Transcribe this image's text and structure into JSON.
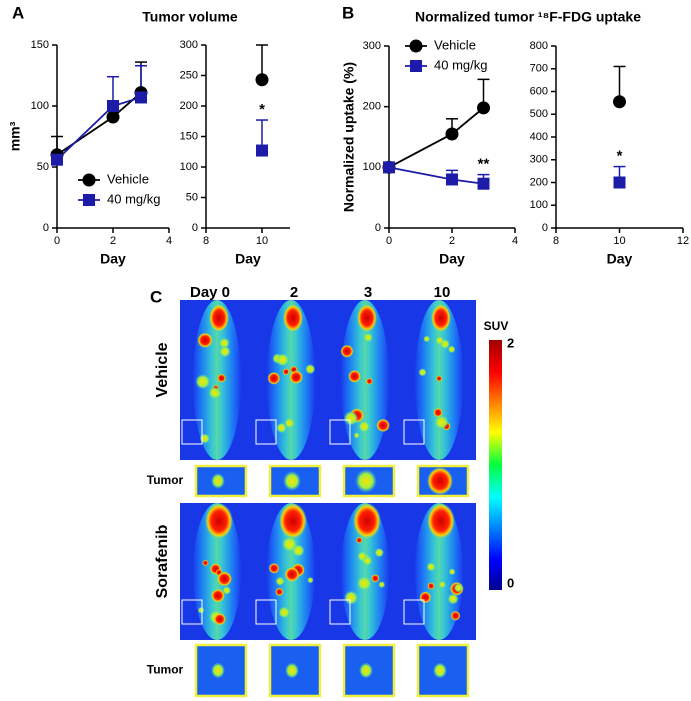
{
  "panels": [
    "A",
    "B"
  ],
  "chart_data": [
    {
      "type": "line",
      "title": "Tumor volume",
      "ylabel": "mm³",
      "xlabel": "Day",
      "xlim": [
        0,
        4
      ],
      "xticks": [
        0,
        2,
        4
      ],
      "ylim": [
        0,
        150
      ],
      "yticks": [
        0,
        50,
        100,
        150
      ],
      "x": [
        0,
        2,
        3
      ],
      "legend": "lower right",
      "series": [
        {
          "name": "Vehicle",
          "color": "#000000",
          "marker": "circle",
          "values": [
            60,
            91,
            111
          ],
          "errors": [
            15,
            10,
            25
          ]
        },
        {
          "name": "40 mg/kg",
          "color": "#1c1ca8",
          "marker": "square",
          "values": [
            56,
            100,
            107
          ],
          "errors": [
            5,
            24,
            26
          ]
        }
      ]
    },
    {
      "type": "line",
      "xlabel": "Day",
      "xlim": [
        8,
        11
      ],
      "xticks": [
        8,
        10
      ],
      "ylim": [
        0,
        300
      ],
      "yticks": [
        0,
        50,
        100,
        150,
        200,
        250,
        300
      ],
      "x": [
        10
      ],
      "annotations": [
        "*"
      ],
      "series": [
        {
          "color": "#000000",
          "marker": "circle",
          "values": [
            243
          ],
          "errors": [
            57
          ]
        },
        {
          "color": "#1c1ca8",
          "marker": "square",
          "values": [
            127
          ],
          "errors": [
            50
          ]
        }
      ]
    },
    {
      "type": "line",
      "title": "Normalized tumor ¹⁸F-FDG uptake",
      "ylabel": "Normalized uptake (%)",
      "xlabel": "Day",
      "xlim": [
        0,
        4
      ],
      "xticks": [
        0,
        2,
        4
      ],
      "ylim": [
        0,
        300
      ],
      "yticks": [
        0,
        100,
        200,
        300
      ],
      "x": [
        0,
        2,
        3
      ],
      "legend": "upper left",
      "annotations": [
        "**"
      ],
      "series": [
        {
          "name": "Vehicle",
          "color": "#000000",
          "marker": "circle",
          "values": [
            100,
            155,
            198
          ],
          "errors": [
            0,
            25,
            47
          ]
        },
        {
          "name": "40 mg/kg",
          "color": "#1c1ca8",
          "marker": "square",
          "values": [
            100,
            80,
            73
          ],
          "errors": [
            0,
            15,
            15
          ]
        }
      ]
    },
    {
      "type": "line",
      "xlabel": "Day",
      "xlim": [
        8,
        12
      ],
      "xticks": [
        8,
        10,
        12
      ],
      "ylim": [
        0,
        800
      ],
      "yticks": [
        0,
        100,
        200,
        300,
        400,
        500,
        600,
        700,
        800
      ],
      "x": [
        10
      ],
      "annotations": [
        "*"
      ],
      "series": [
        {
          "color": "#000000",
          "marker": "circle",
          "values": [
            555
          ],
          "errors": [
            155
          ]
        },
        {
          "color": "#1c1ca8",
          "marker": "square",
          "values": [
            200
          ],
          "errors": [
            70
          ]
        }
      ]
    }
  ],
  "panel_c": {
    "label": "C",
    "days": [
      "Day 0",
      "2",
      "3",
      "10"
    ],
    "rows": [
      "Vehicle",
      "Sorafenib"
    ],
    "inset_label": "Tumor",
    "colorbar": {
      "title": "SUV",
      "max": 2,
      "min": 0
    }
  }
}
